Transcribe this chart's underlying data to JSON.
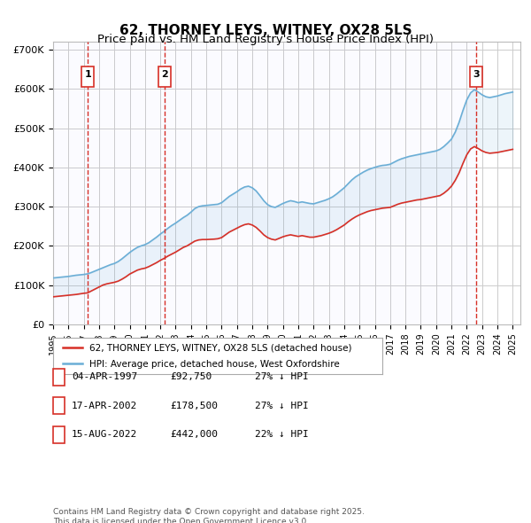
{
  "title": "62, THORNEY LEYS, WITNEY, OX28 5LS",
  "subtitle": "Price paid vs. HM Land Registry's House Price Index (HPI)",
  "title_fontsize": 11,
  "subtitle_fontsize": 9.5,
  "background_color": "#ffffff",
  "plot_bg_color": "#ffffff",
  "grid_color": "#cccccc",
  "ylabel": "",
  "ylim": [
    0,
    720000
  ],
  "yticks": [
    0,
    100000,
    200000,
    300000,
    400000,
    500000,
    600000,
    700000
  ],
  "ytick_labels": [
    "£0",
    "£100K",
    "£200K",
    "£300K",
    "£400K",
    "£500K",
    "£600K",
    "£700K"
  ],
  "hpi_color": "#6baed6",
  "price_color": "#d73027",
  "marker_color": "#d73027",
  "vline_color": "#d73027",
  "sale_dates": [
    1997.26,
    2002.3,
    2022.62
  ],
  "sale_prices": [
    92750,
    178500,
    442000
  ],
  "sale_labels": [
    "1",
    "2",
    "3"
  ],
  "legend_line1": "62, THORNEY LEYS, WITNEY, OX28 5LS (detached house)",
  "legend_line2": "HPI: Average price, detached house, West Oxfordshire",
  "table_data": [
    [
      "1",
      "04-APR-1997",
      "£92,750",
      "27% ↓ HPI"
    ],
    [
      "2",
      "17-APR-2002",
      "£178,500",
      "27% ↓ HPI"
    ],
    [
      "3",
      "15-AUG-2022",
      "£442,000",
      "22% ↓ HPI"
    ]
  ],
  "footer": "Contains HM Land Registry data © Crown copyright and database right 2025.\nThis data is licensed under the Open Government Licence v3.0.",
  "hpi_years": [
    1995.0,
    1995.25,
    1995.5,
    1995.75,
    1996.0,
    1996.25,
    1996.5,
    1996.75,
    1997.0,
    1997.25,
    1997.5,
    1997.75,
    1998.0,
    1998.25,
    1998.5,
    1998.75,
    1999.0,
    1999.25,
    1999.5,
    1999.75,
    2000.0,
    2000.25,
    2000.5,
    2000.75,
    2001.0,
    2001.25,
    2001.5,
    2001.75,
    2002.0,
    2002.25,
    2002.5,
    2002.75,
    2003.0,
    2003.25,
    2003.5,
    2003.75,
    2004.0,
    2004.25,
    2004.5,
    2004.75,
    2005.0,
    2005.25,
    2005.5,
    2005.75,
    2006.0,
    2006.25,
    2006.5,
    2006.75,
    2007.0,
    2007.25,
    2007.5,
    2007.75,
    2008.0,
    2008.25,
    2008.5,
    2008.75,
    2009.0,
    2009.25,
    2009.5,
    2009.75,
    2010.0,
    2010.25,
    2010.5,
    2010.75,
    2011.0,
    2011.25,
    2011.5,
    2011.75,
    2012.0,
    2012.25,
    2012.5,
    2012.75,
    2013.0,
    2013.25,
    2013.5,
    2013.75,
    2014.0,
    2014.25,
    2014.5,
    2014.75,
    2015.0,
    2015.25,
    2015.5,
    2015.75,
    2016.0,
    2016.25,
    2016.5,
    2016.75,
    2017.0,
    2017.25,
    2017.5,
    2017.75,
    2018.0,
    2018.25,
    2018.5,
    2018.75,
    2019.0,
    2019.25,
    2019.5,
    2019.75,
    2020.0,
    2020.25,
    2020.5,
    2020.75,
    2021.0,
    2021.25,
    2021.5,
    2021.75,
    2022.0,
    2022.25,
    2022.5,
    2022.75,
    2023.0,
    2023.25,
    2023.5,
    2023.75,
    2024.0,
    2024.25,
    2024.5,
    2024.75,
    2025.0
  ],
  "hpi_values": [
    118000,
    119000,
    120000,
    121000,
    122000,
    123500,
    125000,
    126000,
    127000,
    128500,
    132000,
    136000,
    140000,
    144000,
    148000,
    152000,
    155000,
    160000,
    167000,
    175000,
    183000,
    190000,
    196000,
    200000,
    203000,
    208000,
    215000,
    222000,
    230000,
    237000,
    245000,
    252000,
    258000,
    265000,
    272000,
    278000,
    286000,
    295000,
    300000,
    302000,
    303000,
    304000,
    305000,
    306000,
    310000,
    318000,
    326000,
    332000,
    338000,
    345000,
    350000,
    352000,
    348000,
    340000,
    328000,
    315000,
    305000,
    300000,
    298000,
    303000,
    308000,
    312000,
    315000,
    313000,
    310000,
    312000,
    310000,
    308000,
    307000,
    310000,
    313000,
    316000,
    320000,
    325000,
    332000,
    340000,
    348000,
    358000,
    368000,
    376000,
    382000,
    388000,
    393000,
    397000,
    400000,
    403000,
    405000,
    406000,
    408000,
    413000,
    418000,
    422000,
    425000,
    428000,
    430000,
    432000,
    434000,
    436000,
    438000,
    440000,
    442000,
    446000,
    453000,
    462000,
    472000,
    490000,
    515000,
    545000,
    572000,
    590000,
    598000,
    592000,
    585000,
    580000,
    578000,
    580000,
    582000,
    585000,
    588000,
    590000,
    592000
  ],
  "price_years": [
    1995.0,
    1995.25,
    1995.5,
    1995.75,
    1996.0,
    1996.25,
    1996.5,
    1996.75,
    1997.0,
    1997.25,
    1997.5,
    1997.75,
    1998.0,
    1998.25,
    1998.5,
    1998.75,
    1999.0,
    1999.25,
    1999.5,
    1999.75,
    2000.0,
    2000.25,
    2000.5,
    2000.75,
    2001.0,
    2001.25,
    2001.5,
    2001.75,
    2002.0,
    2002.25,
    2002.5,
    2002.75,
    2003.0,
    2003.25,
    2003.5,
    2003.75,
    2004.0,
    2004.25,
    2004.5,
    2004.75,
    2005.0,
    2005.25,
    2005.5,
    2005.75,
    2006.0,
    2006.25,
    2006.5,
    2006.75,
    2007.0,
    2007.25,
    2007.5,
    2007.75,
    2008.0,
    2008.25,
    2008.5,
    2008.75,
    2009.0,
    2009.25,
    2009.5,
    2009.75,
    2010.0,
    2010.25,
    2010.5,
    2010.75,
    2011.0,
    2011.25,
    2011.5,
    2011.75,
    2012.0,
    2012.25,
    2012.5,
    2012.75,
    2013.0,
    2013.25,
    2013.5,
    2013.75,
    2014.0,
    2014.25,
    2014.5,
    2014.75,
    2015.0,
    2015.25,
    2015.5,
    2015.75,
    2016.0,
    2016.25,
    2016.5,
    2016.75,
    2017.0,
    2017.25,
    2017.5,
    2017.75,
    2018.0,
    2018.25,
    2018.5,
    2018.75,
    2019.0,
    2019.25,
    2019.5,
    2019.75,
    2020.0,
    2020.25,
    2020.5,
    2020.75,
    2021.0,
    2021.25,
    2021.5,
    2021.75,
    2022.0,
    2022.25,
    2022.5,
    2022.75,
    2023.0,
    2023.25,
    2023.5,
    2023.75,
    2024.0,
    2024.25,
    2024.5,
    2024.75,
    2025.0
  ],
  "price_values": [
    70000,
    71000,
    72000,
    73000,
    74000,
    75000,
    76000,
    77500,
    79000,
    80000,
    85000,
    90000,
    95000,
    100000,
    103000,
    105000,
    107000,
    110000,
    115000,
    121000,
    128000,
    133000,
    138000,
    141000,
    143000,
    147000,
    152000,
    157000,
    163000,
    168000,
    174000,
    179000,
    184000,
    190000,
    196000,
    200000,
    206000,
    212000,
    215000,
    216000,
    216000,
    216500,
    217000,
    218000,
    221000,
    228000,
    235000,
    240000,
    245000,
    250000,
    254000,
    256000,
    253000,
    247000,
    238000,
    228000,
    221000,
    217000,
    215000,
    219000,
    223000,
    226000,
    228000,
    226000,
    224000,
    226000,
    224000,
    222000,
    222000,
    224000,
    226000,
    229000,
    232000,
    236000,
    241000,
    247000,
    253000,
    261000,
    268000,
    274000,
    279000,
    283000,
    287000,
    290000,
    292000,
    294000,
    296000,
    297000,
    298000,
    302000,
    306000,
    309000,
    311000,
    313000,
    315000,
    317000,
    318000,
    320000,
    322000,
    324000,
    326000,
    328000,
    334000,
    342000,
    352000,
    367000,
    386000,
    410000,
    432000,
    447000,
    453000,
    448000,
    442000,
    438000,
    436000,
    437000,
    438000,
    440000,
    442000,
    444000,
    446000
  ],
  "xlim": [
    1995.0,
    2025.5
  ],
  "xtick_years": [
    1995,
    1996,
    1997,
    1998,
    1999,
    2000,
    2001,
    2002,
    2003,
    2004,
    2005,
    2006,
    2007,
    2008,
    2009,
    2010,
    2011,
    2012,
    2013,
    2014,
    2015,
    2016,
    2017,
    2018,
    2019,
    2020,
    2021,
    2022,
    2023,
    2024,
    2025
  ]
}
